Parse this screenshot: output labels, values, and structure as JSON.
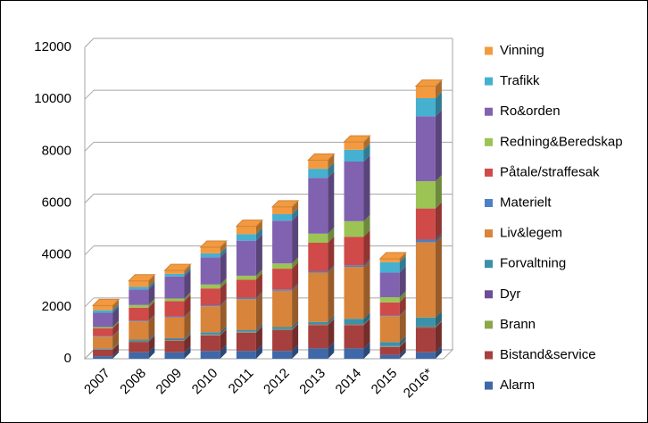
{
  "chart_data": {
    "type": "bar",
    "stacked": true,
    "categories": [
      "2007",
      "2008",
      "2009",
      "2010",
      "2011",
      "2012",
      "2013",
      "2014",
      "2015",
      "2016*"
    ],
    "ylim": [
      0,
      12000
    ],
    "yticks": [
      0,
      2000,
      4000,
      6000,
      8000,
      10000,
      12000
    ],
    "grid": true,
    "legend": "right",
    "series": [
      {
        "name": "Alarm",
        "color": "#3f68a8",
        "values": [
          100,
          250,
          250,
          300,
          300,
          300,
          400,
          400,
          150,
          250
        ]
      },
      {
        "name": "Bistand&service",
        "color": "#a5403e",
        "values": [
          250,
          400,
          450,
          600,
          700,
          800,
          900,
          900,
          300,
          950
        ]
      },
      {
        "name": "Brann",
        "color": "#8aa84b",
        "values": [
          10,
          20,
          20,
          20,
          20,
          20,
          20,
          20,
          20,
          20
        ]
      },
      {
        "name": "Dyr",
        "color": "#6b4e96",
        "values": [
          10,
          20,
          20,
          20,
          20,
          20,
          20,
          20,
          20,
          20
        ]
      },
      {
        "name": "Forvaltning",
        "color": "#3b92a8",
        "values": [
          30,
          50,
          50,
          80,
          60,
          80,
          80,
          200,
          150,
          350
        ]
      },
      {
        "name": "Liv&legem",
        "color": "#d8843a",
        "values": [
          450,
          700,
          800,
          1000,
          1200,
          1400,
          1900,
          2000,
          1000,
          2900
        ]
      },
      {
        "name": "Materielt",
        "color": "#4d7fc4",
        "values": [
          20,
          30,
          30,
          40,
          50,
          50,
          50,
          60,
          30,
          100
        ]
      },
      {
        "name": "Påtale/straffesak",
        "color": "#cf4a48",
        "values": [
          300,
          500,
          600,
          650,
          700,
          800,
          1100,
          1100,
          500,
          1200
        ]
      },
      {
        "name": "Redning&Beredskap",
        "color": "#9bc455",
        "values": [
          50,
          100,
          100,
          150,
          150,
          200,
          350,
          600,
          200,
          1050
        ]
      },
      {
        "name": "Ro&orden",
        "color": "#8162b0",
        "values": [
          550,
          600,
          850,
          1050,
          1350,
          1650,
          2150,
          2300,
          950,
          2500
        ]
      },
      {
        "name": "Trafikk",
        "color": "#45b0cf",
        "values": [
          100,
          100,
          100,
          150,
          250,
          250,
          350,
          450,
          400,
          700
        ]
      },
      {
        "name": "Vinning",
        "color": "#f39a40",
        "values": [
          180,
          230,
          130,
          240,
          300,
          280,
          330,
          300,
          130,
          460
        ]
      }
    ]
  }
}
